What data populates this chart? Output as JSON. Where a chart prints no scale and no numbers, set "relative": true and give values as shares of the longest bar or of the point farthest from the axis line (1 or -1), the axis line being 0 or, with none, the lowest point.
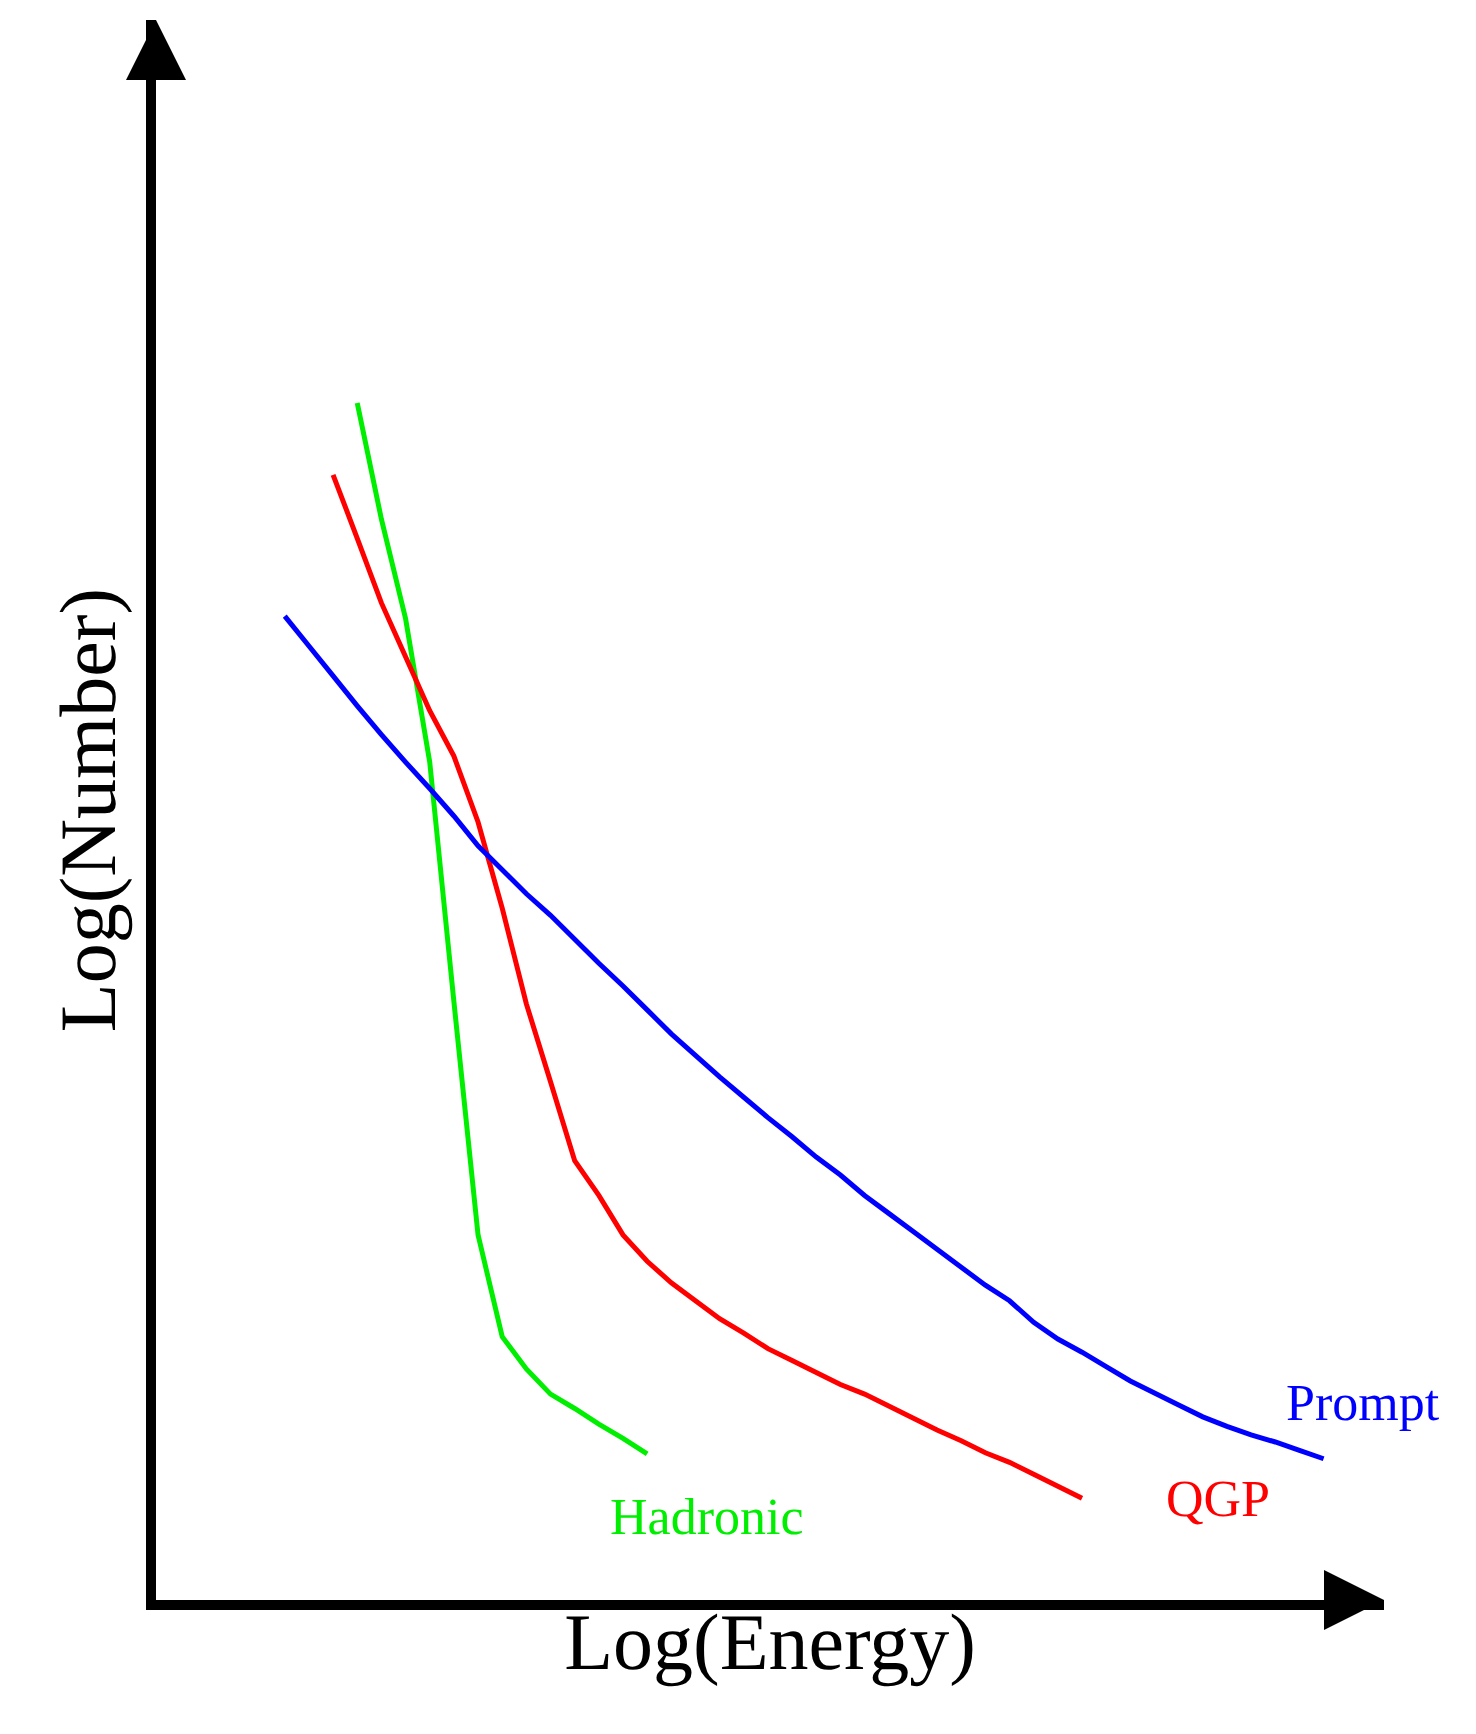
{
  "chart_data": {
    "type": "line",
    "relative": true,
    "xlabel": "Log(Energy)",
    "ylabel": "Log(Number)",
    "legend": false,
    "marker": "none",
    "line_style": "solid",
    "categories": [
      null,
      null,
      null,
      null,
      null,
      null,
      null,
      null,
      null,
      null,
      null,
      null,
      null,
      null,
      null,
      null,
      null,
      null,
      null,
      null,
      null,
      null,
      null,
      null,
      null,
      null,
      null,
      null,
      null,
      null,
      null,
      null,
      null,
      null,
      null,
      null,
      null,
      null,
      null,
      null,
      null,
      null,
      null,
      null,
      null,
      null,
      null,
      null,
      null,
      null,
      null
    ],
    "series": [
      {
        "name": "Hadronic",
        "color": "#00ee00",
        "values": [
          null,
          null,
          null,
          null,
          null,
          null,
          null,
          null,
          1.0,
          0.903,
          0.82,
          0.7,
          0.5,
          0.305,
          0.22,
          0.193,
          0.172,
          0.16,
          0.147,
          0.135,
          0.122,
          null,
          null,
          null,
          null,
          null,
          null,
          null,
          null,
          null,
          null,
          null,
          null,
          null,
          null,
          null,
          null,
          null,
          null,
          null,
          null,
          null,
          null,
          null,
          null,
          null,
          null,
          null,
          null,
          null,
          null
        ]
      },
      {
        "name": "QGP",
        "color": "#ff0000",
        "values": [
          null,
          null,
          null,
          null,
          null,
          null,
          null,
          0.94,
          0.887,
          0.833,
          0.788,
          0.743,
          0.705,
          0.65,
          0.578,
          0.498,
          0.433,
          0.367,
          0.338,
          0.305,
          0.283,
          0.265,
          0.25,
          0.235,
          0.223,
          0.21,
          0.2,
          0.19,
          0.18,
          0.172,
          0.162,
          0.152,
          0.142,
          0.133,
          0.123,
          0.115,
          0.105,
          0.095,
          0.085,
          null,
          null,
          null,
          null,
          null,
          null,
          null,
          null,
          null,
          null,
          null,
          null
        ]
      },
      {
        "name": "Prompt",
        "color": "#0000ff",
        "values": [
          null,
          null,
          null,
          null,
          null,
          0.822,
          0.797,
          0.772,
          0.747,
          0.723,
          0.7,
          0.678,
          0.655,
          0.63,
          0.61,
          0.59,
          0.572,
          0.552,
          0.532,
          0.513,
          0.493,
          0.473,
          0.455,
          0.437,
          0.42,
          0.403,
          0.387,
          0.37,
          0.355,
          0.338,
          0.323,
          0.308,
          0.293,
          0.278,
          0.263,
          0.25,
          0.232,
          0.218,
          0.207,
          0.195,
          0.183,
          0.173,
          0.163,
          0.153,
          0.145,
          0.138,
          0.132,
          0.125,
          0.118,
          null,
          null
        ]
      }
    ]
  }
}
